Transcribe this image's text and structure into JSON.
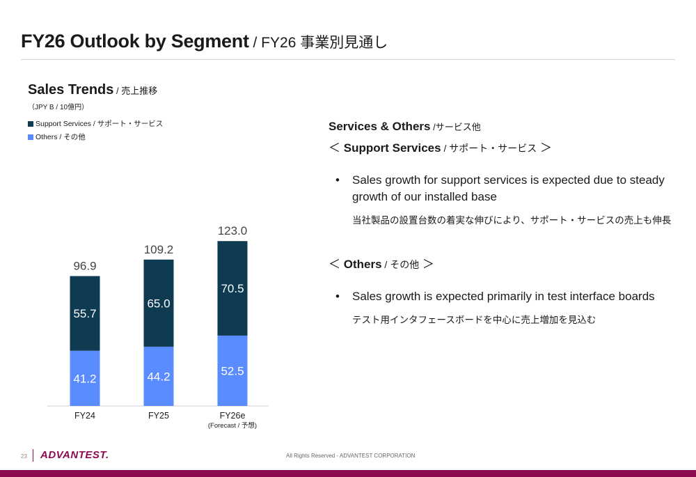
{
  "header": {
    "title_en": "FY26 Outlook by Segment",
    "title_jp": " / FY26 事業別見通し"
  },
  "chart_header": {
    "title_en": "Sales Trends",
    "title_jp": " / 売上推移",
    "unit": "（JPY B / 10億円）"
  },
  "chart_data": {
    "type": "bar",
    "stacked": true,
    "categories": [
      "FY24",
      "FY25",
      "FY26e"
    ],
    "category_notes": [
      "",
      "",
      "(Forecast / 予想)"
    ],
    "series": [
      {
        "name": "Others / その他",
        "values": [
          41.2,
          44.2,
          52.5
        ],
        "color": "#5a8cff"
      },
      {
        "name": "Support Services / サポート・サービス",
        "values": [
          55.7,
          65.0,
          70.5
        ],
        "color": "#0e3a52"
      }
    ],
    "totals": [
      "96.9",
      "109.2",
      "123.0"
    ],
    "value_labels": [
      [
        "41.2",
        "44.2",
        "52.5"
      ],
      [
        "55.7",
        "65.0",
        "70.5"
      ]
    ],
    "ylim": [
      0,
      123.0
    ],
    "legend_position": "top-left",
    "grid": false
  },
  "right_panel": {
    "heading_en": "Services & Others",
    "heading_jp": " /サービス他",
    "section1": {
      "open": "＜ ",
      "title_en": "Support Services",
      "title_jp": " / サポート・サービス",
      "close": " ＞",
      "bullet_mark": "•",
      "bullet_en": "Sales growth for support services is expected due to steady growth of our installed base",
      "bullet_jp": "当社製品の設置台数の着実な伸びにより、サポート・サービスの売上も伸長"
    },
    "section2": {
      "open": "＜ ",
      "title_en": "Others",
      "title_jp": " / その他",
      "close": " ＞",
      "bullet_mark": "•",
      "bullet_en": "Sales growth is expected primarily in test interface boards",
      "bullet_jp": "テスト用インタフェースボードを中心に売上増加を見込む"
    }
  },
  "footer": {
    "page": "23",
    "logo": "ADVANTEST.",
    "copyright": "All Rights Reserved - ADVANTEST CORPORATION"
  }
}
